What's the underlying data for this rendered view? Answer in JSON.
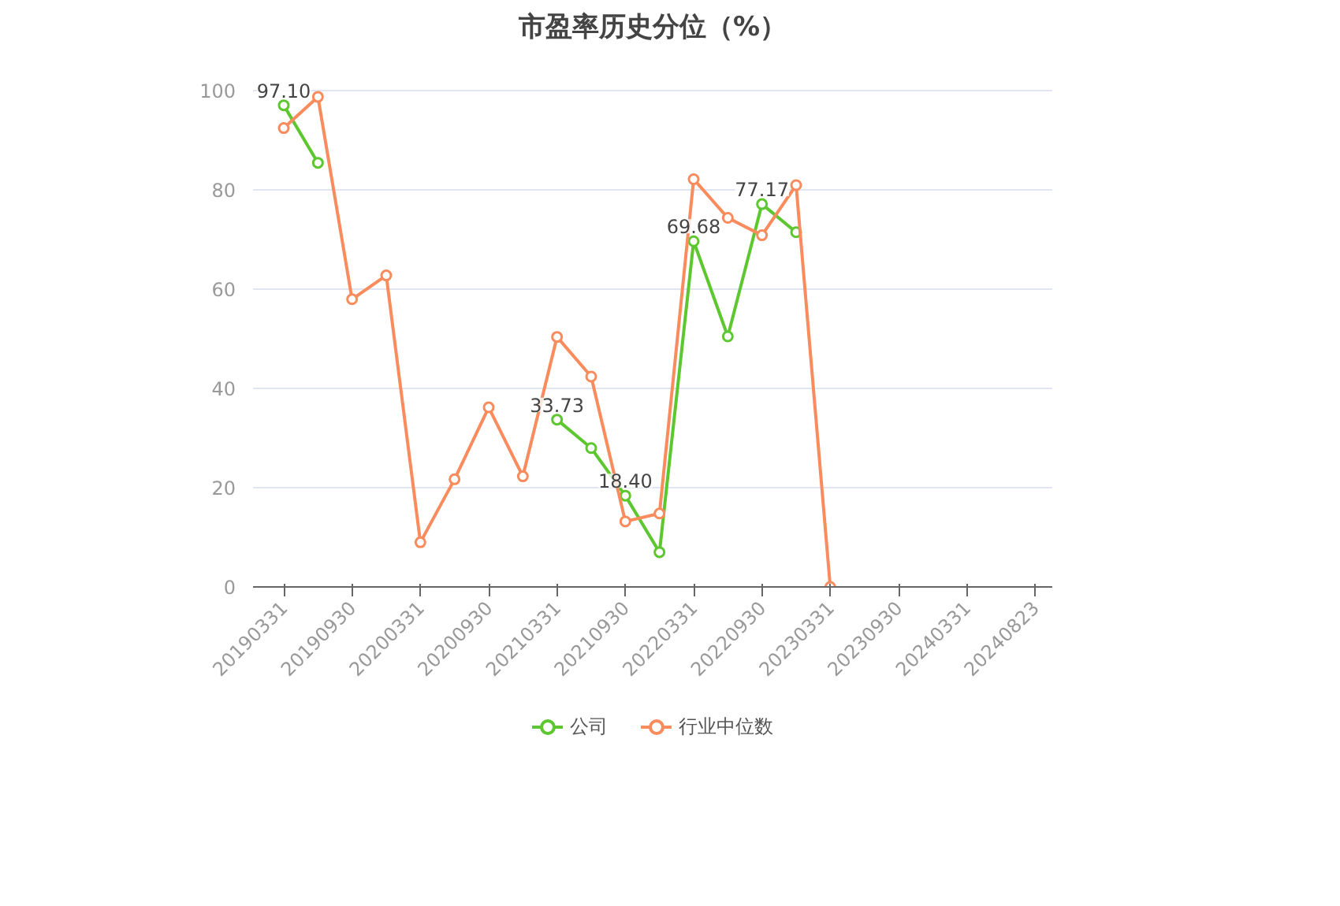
{
  "chart_data": {
    "type": "line",
    "title": "市盈率历史分位（%）",
    "categories": [
      "20190331",
      null,
      "20190930",
      null,
      "20200331",
      null,
      "20200930",
      null,
      "20210331",
      null,
      "20210930",
      null,
      "20220331",
      null,
      "20220930",
      null,
      "20230331",
      null,
      "20230930",
      null,
      "20240331",
      null,
      "20240823"
    ],
    "series": [
      {
        "name": "公司",
        "color": "#5cc72e",
        "values": [
          97.1,
          85.5,
          null,
          null,
          null,
          null,
          null,
          null,
          33.73,
          28.0,
          18.4,
          7.0,
          69.68,
          50.5,
          77.17,
          71.5,
          null,
          null,
          null,
          null,
          null,
          null,
          null
        ],
        "value_labels": [
          "97.10",
          null,
          null,
          null,
          null,
          null,
          null,
          null,
          "33.73",
          null,
          "18.40",
          null,
          "69.68",
          null,
          "77.17",
          null,
          null,
          null,
          null,
          null,
          null,
          null,
          null
        ]
      },
      {
        "name": "行业中位数",
        "color": "#f98b5c",
        "values": [
          92.5,
          98.8,
          58.0,
          62.8,
          9.0,
          21.7,
          36.2,
          22.3,
          50.4,
          42.4,
          13.2,
          14.8,
          82.2,
          74.4,
          70.9,
          81.0,
          0.0,
          null,
          null,
          null,
          null,
          null,
          null
        ]
      }
    ],
    "ylim": [
      0,
      100
    ],
    "yticks": [
      0,
      20,
      40,
      60,
      80,
      100
    ],
    "grid": "y",
    "legend": "bottom",
    "marker": "circle",
    "line_style": "solid"
  }
}
